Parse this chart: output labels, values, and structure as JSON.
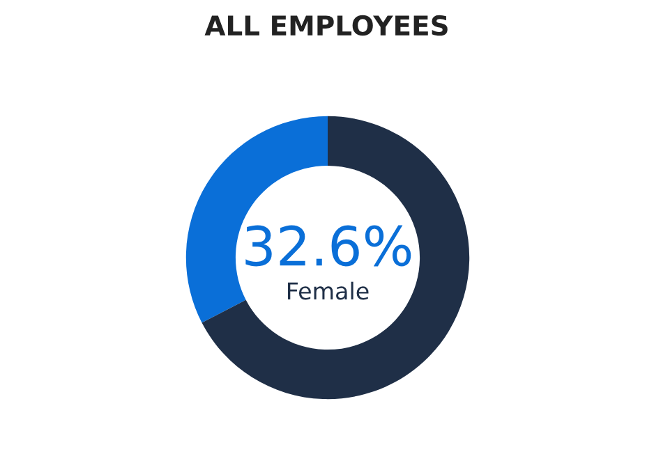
{
  "chart_data": {
    "type": "donut",
    "title": "ALL EMPLOYEES",
    "categories": [
      "Female",
      null
    ],
    "values": [
      32.6,
      67.4
    ],
    "value_labels": [
      "32.6%",
      null
    ],
    "colors": [
      "#0a6fd8",
      "#1f2f47"
    ],
    "legend": false
  }
}
